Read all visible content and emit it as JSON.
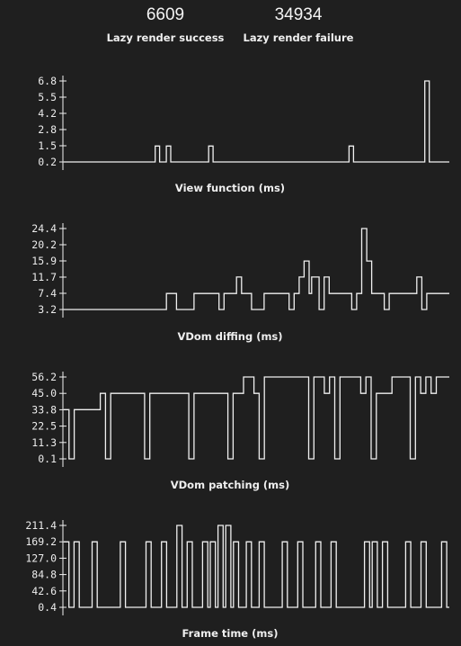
{
  "stats": {
    "success": {
      "value": "6609",
      "label": "Lazy render success"
    },
    "failure": {
      "value": "34934",
      "label": "Lazy render failure"
    }
  },
  "colors": {
    "background": "#1f1f1f",
    "line": "#f0f0f0",
    "text": "#efefef"
  },
  "chart_data": [
    {
      "type": "line",
      "title": "View function (ms)",
      "yticks": [
        "6.8",
        "5.5",
        "4.2",
        "2.8",
        "1.5",
        "0.2"
      ],
      "ylim": [
        0.2,
        6.8
      ],
      "series": [
        {
          "values": [
            0.2,
            0.2,
            0.2,
            0.2,
            0.2,
            0.2,
            0.2,
            0.2,
            0.2,
            0.2,
            0.2,
            0.2,
            0.2,
            0.2,
            0.2,
            0.2,
            0.2,
            0.2,
            0.2,
            0.2,
            0.2,
            0.2,
            0.2,
            0.2,
            0.2,
            0.2,
            0.2,
            0.2,
            0.2,
            0.2,
            0.2,
            0.2,
            0.2,
            0.2,
            0.2,
            0.2,
            0.2,
            0.2,
            0.2,
            0.2,
            0.2,
            1.5,
            1.5,
            0.2,
            0.2,
            0.2,
            1.5,
            1.5,
            0.2,
            0.2,
            0.2,
            0.2,
            0.2,
            0.2,
            0.2,
            0.2,
            0.2,
            0.2,
            0.2,
            0.2,
            0.2,
            0.2,
            0.2,
            0.2,
            0.2,
            1.5,
            1.5,
            0.2,
            0.2,
            0.2,
            0.2,
            0.2,
            0.2,
            0.2,
            0.2,
            0.2,
            0.2,
            0.2,
            0.2,
            0.2,
            0.2,
            0.2,
            0.2,
            0.2,
            0.2,
            0.2,
            0.2,
            0.2,
            0.2,
            0.2,
            0.2,
            0.2,
            0.2,
            0.2,
            0.2,
            0.2,
            0.2,
            0.2,
            0.2,
            0.2,
            0.2,
            0.2,
            0.2,
            0.2,
            0.2,
            0.2,
            0.2,
            0.2,
            0.2,
            0.2,
            0.2,
            0.2,
            0.2,
            0.2,
            0.2,
            0.2,
            0.2,
            0.2,
            0.2,
            0.2,
            0.2,
            0.2,
            0.2,
            0.2,
            0.2,
            0.2,
            0.2,
            0.2,
            1.5,
            1.5,
            0.2,
            0.2,
            0.2,
            0.2,
            0.2,
            0.2,
            0.2,
            0.2,
            0.2,
            0.2,
            0.2,
            0.2,
            0.2,
            0.2,
            0.2,
            0.2,
            0.2,
            0.2,
            0.2,
            0.2,
            0.2,
            0.2,
            0.2,
            0.2,
            0.2,
            0.2,
            0.2,
            0.2,
            0.2,
            0.2,
            0.2,
            0.2,
            6.8,
            6.8,
            0.2,
            0.2,
            0.2,
            0.2,
            0.2,
            0.2,
            0.2,
            0.2,
            0.2
          ]
        }
      ]
    },
    {
      "type": "line",
      "title": "VDom diffing (ms)",
      "yticks": [
        "24.4",
        "20.2",
        "15.9",
        "11.7",
        "7.4",
        "3.2"
      ],
      "ylim": [
        3.2,
        24.4
      ],
      "series": [
        {
          "values": [
            3.2,
            3.2,
            3.2,
            3.2,
            3.2,
            3.2,
            3.2,
            3.2,
            3.2,
            3.2,
            3.2,
            3.2,
            3.2,
            3.2,
            3.2,
            3.2,
            3.2,
            3.2,
            3.2,
            3.2,
            3.2,
            3.2,
            3.2,
            3.2,
            3.2,
            3.2,
            3.2,
            3.2,
            3.2,
            3.2,
            3.2,
            3.2,
            3.2,
            3.2,
            3.2,
            3.2,
            3.2,
            3.2,
            3.2,
            3.2,
            3.2,
            7.4,
            7.4,
            7.4,
            7.4,
            3.2,
            3.2,
            3.2,
            3.2,
            3.2,
            3.2,
            3.2,
            7.4,
            7.4,
            7.4,
            7.4,
            7.4,
            7.4,
            7.4,
            7.4,
            7.4,
            7.4,
            3.2,
            3.2,
            7.4,
            7.4,
            7.4,
            7.4,
            7.4,
            11.7,
            11.7,
            7.4,
            7.4,
            7.4,
            7.4,
            3.2,
            3.2,
            3.2,
            3.2,
            3.2,
            7.4,
            7.4,
            7.4,
            7.4,
            7.4,
            7.4,
            7.4,
            7.4,
            7.4,
            7.4,
            3.2,
            3.2,
            7.4,
            7.4,
            11.7,
            11.7,
            15.9,
            15.9,
            7.4,
            11.7,
            11.7,
            11.7,
            3.2,
            3.2,
            11.7,
            11.7,
            7.4,
            7.4,
            7.4,
            7.4,
            7.4,
            7.4,
            7.4,
            7.4,
            7.4,
            3.2,
            3.2,
            7.4,
            7.4,
            24.4,
            24.4,
            15.9,
            15.9,
            7.4,
            7.4,
            7.4,
            7.4,
            7.4,
            3.2,
            3.2,
            7.4,
            7.4,
            7.4,
            7.4,
            7.4,
            7.4,
            7.4,
            7.4,
            7.4,
            7.4,
            7.4,
            11.7,
            11.7,
            3.2,
            3.2,
            7.4,
            7.4,
            7.4,
            7.4,
            7.4,
            7.4,
            7.4,
            7.4,
            7.4
          ]
        }
      ]
    },
    {
      "type": "line",
      "title": "VDom patching (ms)",
      "yticks": [
        "56.2",
        "45.0",
        "33.8",
        "22.5",
        "11.3",
        "0.1"
      ],
      "ylim": [
        0.1,
        56.2
      ],
      "series": [
        {
          "values": [
            33.8,
            33.8,
            0.1,
            0.1,
            33.8,
            33.8,
            33.8,
            33.8,
            33.8,
            33.8,
            33.8,
            33.8,
            33.8,
            33.8,
            45.0,
            45.0,
            0.1,
            0.1,
            45.0,
            45.0,
            45.0,
            45.0,
            45.0,
            45.0,
            45.0,
            45.0,
            45.0,
            45.0,
            45.0,
            45.0,
            45.0,
            0.1,
            0.1,
            45.0,
            45.0,
            45.0,
            45.0,
            45.0,
            45.0,
            45.0,
            45.0,
            45.0,
            45.0,
            45.0,
            45.0,
            45.0,
            45.0,
            45.0,
            0.1,
            0.1,
            45.0,
            45.0,
            45.0,
            45.0,
            45.0,
            45.0,
            45.0,
            45.0,
            45.0,
            45.0,
            45.0,
            45.0,
            45.0,
            0.1,
            0.1,
            45.0,
            45.0,
            45.0,
            45.0,
            56.2,
            56.2,
            56.2,
            56.2,
            45.0,
            45.0,
            0.1,
            0.1,
            56.2,
            56.2,
            56.2,
            56.2,
            56.2,
            56.2,
            56.2,
            56.2,
            56.2,
            56.2,
            56.2,
            56.2,
            56.2,
            56.2,
            56.2,
            56.2,
            56.2,
            0.1,
            0.1,
            56.2,
            56.2,
            56.2,
            56.2,
            45.0,
            45.0,
            56.2,
            56.2,
            0.1,
            0.1,
            56.2,
            56.2,
            56.2,
            56.2,
            56.2,
            56.2,
            56.2,
            56.2,
            45.0,
            45.0,
            56.2,
            56.2,
            0.1,
            0.1,
            45.0,
            45.0,
            45.0,
            45.0,
            45.0,
            45.0,
            56.2,
            56.2,
            56.2,
            56.2,
            56.2,
            56.2,
            56.2,
            0.1,
            0.1,
            56.2,
            56.2,
            45.0,
            45.0,
            56.2,
            56.2,
            45.0,
            45.0,
            56.2,
            56.2,
            56.2,
            56.2,
            56.2
          ]
        }
      ]
    },
    {
      "type": "line",
      "title": "Frame time (ms)",
      "yticks": [
        "211.4",
        "169.2",
        "127.0",
        "84.8",
        "42.6",
        "0.4"
      ],
      "ylim": [
        0.4,
        211.4
      ],
      "series": [
        {
          "values": [
            169.2,
            169.2,
            0.4,
            0.4,
            169.2,
            169.2,
            0.4,
            0.4,
            0.4,
            0.4,
            0.4,
            169.2,
            169.2,
            0.4,
            0.4,
            0.4,
            0.4,
            0.4,
            0.4,
            0.4,
            0.4,
            0.4,
            169.2,
            169.2,
            0.4,
            0.4,
            0.4,
            0.4,
            0.4,
            0.4,
            0.4,
            0.4,
            169.2,
            169.2,
            0.4,
            0.4,
            0.4,
            0.4,
            169.2,
            169.2,
            0.4,
            0.4,
            0.4,
            0.4,
            211.4,
            211.4,
            0.4,
            0.4,
            169.2,
            169.2,
            0.4,
            0.4,
            0.4,
            0.4,
            169.2,
            169.2,
            0.4,
            169.2,
            169.2,
            0.4,
            211.4,
            211.4,
            0.4,
            211.4,
            211.4,
            0.4,
            169.2,
            169.2,
            0.4,
            0.4,
            0.4,
            169.2,
            169.2,
            0.4,
            0.4,
            0.4,
            169.2,
            169.2,
            0.4,
            0.4,
            0.4,
            0.4,
            0.4,
            0.4,
            0.4,
            169.2,
            169.2,
            0.4,
            0.4,
            0.4,
            0.4,
            169.2,
            169.2,
            0.4,
            0.4,
            0.4,
            0.4,
            0.4,
            169.2,
            169.2,
            0.4,
            0.4,
            0.4,
            0.4,
            169.2,
            169.2,
            0.4,
            0.4,
            0.4,
            0.4,
            0.4,
            0.4,
            0.4,
            0.4,
            0.4,
            0.4,
            0.4,
            169.2,
            169.2,
            0.4,
            169.2,
            169.2,
            0.4,
            0.4,
            169.2,
            169.2,
            0.4,
            0.4,
            0.4,
            0.4,
            0.4,
            0.4,
            0.4,
            169.2,
            169.2,
            0.4,
            0.4,
            0.4,
            0.4,
            169.2,
            169.2,
            0.4,
            0.4,
            0.4,
            0.4,
            0.4,
            0.4,
            169.2,
            169.2,
            0.4
          ]
        }
      ]
    }
  ]
}
